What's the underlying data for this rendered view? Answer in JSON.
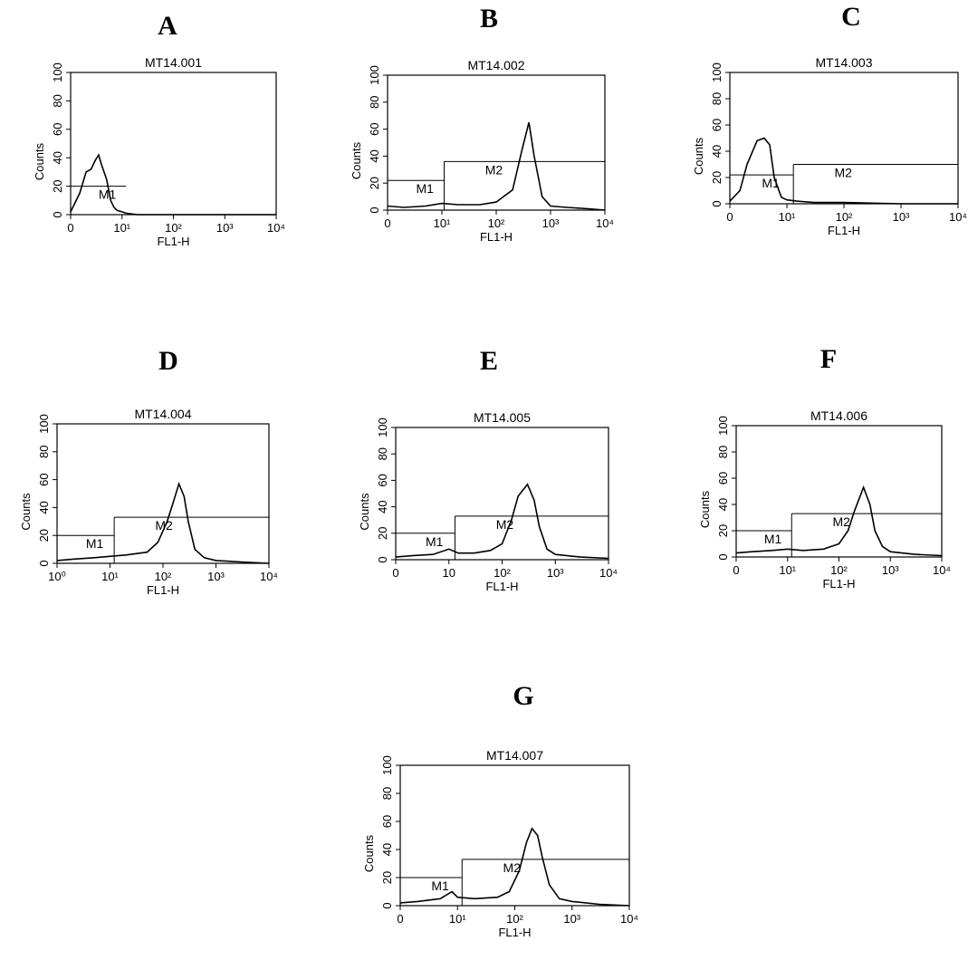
{
  "chart_data": [
    {
      "type": "line",
      "panel": "A",
      "title": "MT14.001",
      "x_label": "FL1-H",
      "y_label": "Counts",
      "xscale": "log",
      "color": "#000000",
      "xlim": [
        1,
        10000
      ],
      "ylim": [
        0,
        100
      ],
      "xticks": [
        {
          "value": 1,
          "label": "0"
        },
        {
          "value": 10,
          "label": "10¹"
        },
        {
          "value": 100,
          "label": "10²"
        },
        {
          "value": 1000,
          "label": "10³"
        },
        {
          "value": 10000,
          "label": "10⁴"
        }
      ],
      "yticks": [
        0,
        20,
        40,
        60,
        80,
        100
      ],
      "x": [
        1,
        1.5,
        2,
        2.5,
        3,
        3.5,
        4,
        5,
        6,
        7,
        8,
        10,
        12,
        20,
        50,
        100,
        1000,
        10000
      ],
      "values": [
        2,
        15,
        30,
        32,
        38,
        42,
        35,
        25,
        10,
        5,
        3,
        2,
        1,
        0,
        0,
        0,
        0,
        0
      ],
      "markers": [
        {
          "label": "M1",
          "range": [
            1,
            12
          ],
          "y": 20
        }
      ]
    },
    {
      "type": "line",
      "panel": "B",
      "title": "MT14.002",
      "x_label": "FL1-H",
      "y_label": "Counts",
      "xscale": "log",
      "color": "#000000",
      "xlim": [
        1,
        10000
      ],
      "ylim": [
        0,
        100
      ],
      "xticks": [
        {
          "value": 1,
          "label": "0"
        },
        {
          "value": 10,
          "label": "10¹"
        },
        {
          "value": 100,
          "label": "10²"
        },
        {
          "value": 1000,
          "label": "10³"
        },
        {
          "value": 10000,
          "label": "10⁴"
        }
      ],
      "yticks": [
        0,
        20,
        40,
        60,
        80,
        100
      ],
      "x": [
        1,
        2,
        5,
        10,
        20,
        50,
        100,
        200,
        300,
        400,
        500,
        700,
        1000,
        2000,
        5000,
        10000
      ],
      "values": [
        3,
        2,
        3,
        5,
        4,
        4,
        6,
        15,
        45,
        65,
        40,
        10,
        3,
        2,
        1,
        0
      ],
      "markers": [
        {
          "label": "M1",
          "range": [
            1,
            11
          ],
          "y": 22
        },
        {
          "label": "M2",
          "range": [
            11,
            10000
          ],
          "y": 36
        }
      ]
    },
    {
      "type": "line",
      "panel": "C",
      "title": "MT14.003",
      "x_label": "FL1-H",
      "y_label": "Counts",
      "xscale": "log",
      "color": "#000000",
      "xlim": [
        1,
        10000
      ],
      "ylim": [
        0,
        100
      ],
      "xticks": [
        {
          "value": 1,
          "label": "0"
        },
        {
          "value": 10,
          "label": "10¹"
        },
        {
          "value": 100,
          "label": "10²"
        },
        {
          "value": 1000,
          "label": "10³"
        },
        {
          "value": 10000,
          "label": "10⁴"
        }
      ],
      "yticks": [
        0,
        20,
        40,
        60,
        80,
        100
      ],
      "x": [
        1,
        1.5,
        2,
        3,
        4,
        5,
        6,
        8,
        10,
        15,
        30,
        100,
        1000,
        10000
      ],
      "values": [
        2,
        10,
        30,
        48,
        50,
        45,
        20,
        5,
        3,
        2,
        1,
        1,
        0,
        0
      ],
      "markers": [
        {
          "label": "M1",
          "range": [
            1,
            13
          ],
          "y": 22
        },
        {
          "label": "M2",
          "range": [
            13,
            10000
          ],
          "y": 30
        }
      ]
    },
    {
      "type": "line",
      "panel": "D",
      "title": "MT14.004",
      "x_label": "FL1-H",
      "y_label": "Counts",
      "xscale": "log",
      "color": "#000000",
      "xlim": [
        1,
        10000
      ],
      "ylim": [
        0,
        100
      ],
      "xticks": [
        {
          "value": 1,
          "label": "10⁰"
        },
        {
          "value": 10,
          "label": "10¹"
        },
        {
          "value": 100,
          "label": "10²"
        },
        {
          "value": 1000,
          "label": "10³"
        },
        {
          "value": 10000,
          "label": "10⁴"
        }
      ],
      "yticks": [
        0,
        20,
        40,
        60,
        80,
        100
      ],
      "x": [
        1,
        2,
        5,
        10,
        20,
        50,
        80,
        120,
        160,
        200,
        250,
        300,
        400,
        600,
        1000,
        3000,
        10000
      ],
      "values": [
        2,
        3,
        4,
        5,
        6,
        8,
        15,
        30,
        45,
        57,
        48,
        30,
        10,
        4,
        2,
        1,
        0
      ],
      "markers": [
        {
          "label": "M1",
          "range": [
            1,
            12
          ],
          "y": 20
        },
        {
          "label": "M2",
          "range": [
            12,
            10000
          ],
          "y": 33
        }
      ]
    },
    {
      "type": "line",
      "panel": "E",
      "title": "MT14.005",
      "x_label": "FL1-H",
      "y_label": "Counts",
      "xscale": "log",
      "color": "#000000",
      "xlim": [
        1,
        10000
      ],
      "ylim": [
        0,
        100
      ],
      "xticks": [
        {
          "value": 1,
          "label": "0"
        },
        {
          "value": 10,
          "label": "10"
        },
        {
          "value": 100,
          "label": "10²"
        },
        {
          "value": 1000,
          "label": "10³"
        },
        {
          "value": 10000,
          "label": "10⁴"
        }
      ],
      "yticks": [
        0,
        20,
        40,
        60,
        80,
        100
      ],
      "x": [
        1,
        2,
        5,
        10,
        15,
        30,
        60,
        100,
        150,
        200,
        300,
        400,
        500,
        700,
        1000,
        3000,
        10000
      ],
      "values": [
        2,
        3,
        4,
        8,
        5,
        5,
        7,
        12,
        30,
        48,
        57,
        45,
        25,
        8,
        4,
        2,
        1
      ],
      "markers": [
        {
          "label": "M1",
          "range": [
            1,
            13
          ],
          "y": 20
        },
        {
          "label": "M2",
          "range": [
            13,
            10000
          ],
          "y": 33
        }
      ]
    },
    {
      "type": "line",
      "panel": "F",
      "title": "MT14.006",
      "x_label": "FL1-H",
      "y_label": "Counts",
      "xscale": "log",
      "color": "#000000",
      "xlim": [
        1,
        10000
      ],
      "ylim": [
        0,
        100
      ],
      "xticks": [
        {
          "value": 1,
          "label": "0"
        },
        {
          "value": 10,
          "label": "10¹"
        },
        {
          "value": 100,
          "label": "10²"
        },
        {
          "value": 1000,
          "label": "10³"
        },
        {
          "value": 10000,
          "label": "10⁴"
        }
      ],
      "yticks": [
        0,
        20,
        40,
        60,
        80,
        100
      ],
      "x": [
        1,
        2,
        5,
        10,
        20,
        50,
        100,
        150,
        200,
        250,
        300,
        400,
        500,
        700,
        1000,
        3000,
        10000
      ],
      "values": [
        3,
        4,
        5,
        6,
        5,
        6,
        10,
        20,
        35,
        45,
        53,
        40,
        20,
        8,
        4,
        2,
        1
      ],
      "markers": [
        {
          "label": "M1",
          "range": [
            1,
            12
          ],
          "y": 20
        },
        {
          "label": "M2",
          "range": [
            12,
            10000
          ],
          "y": 33
        }
      ]
    },
    {
      "type": "line",
      "panel": "G",
      "title": "MT14.007",
      "x_label": "FL1-H",
      "y_label": "Counts",
      "xscale": "log",
      "color": "#000000",
      "xlim": [
        1,
        10000
      ],
      "ylim": [
        0,
        100
      ],
      "xticks": [
        {
          "value": 1,
          "label": "0"
        },
        {
          "value": 10,
          "label": "10¹"
        },
        {
          "value": 100,
          "label": "10²"
        },
        {
          "value": 1000,
          "label": "10³"
        },
        {
          "value": 10000,
          "label": "10⁴"
        }
      ],
      "yticks": [
        0,
        20,
        40,
        60,
        80,
        100
      ],
      "x": [
        1,
        2,
        5,
        8,
        10,
        20,
        50,
        80,
        120,
        160,
        200,
        250,
        300,
        400,
        600,
        1000,
        3000,
        10000
      ],
      "values": [
        2,
        3,
        5,
        10,
        6,
        5,
        6,
        10,
        25,
        45,
        55,
        50,
        35,
        15,
        5,
        3,
        1,
        0
      ],
      "markers": [
        {
          "label": "M1",
          "range": [
            1,
            12
          ],
          "y": 20
        },
        {
          "label": "M2",
          "range": [
            12,
            10000
          ],
          "y": 33
        }
      ]
    }
  ]
}
